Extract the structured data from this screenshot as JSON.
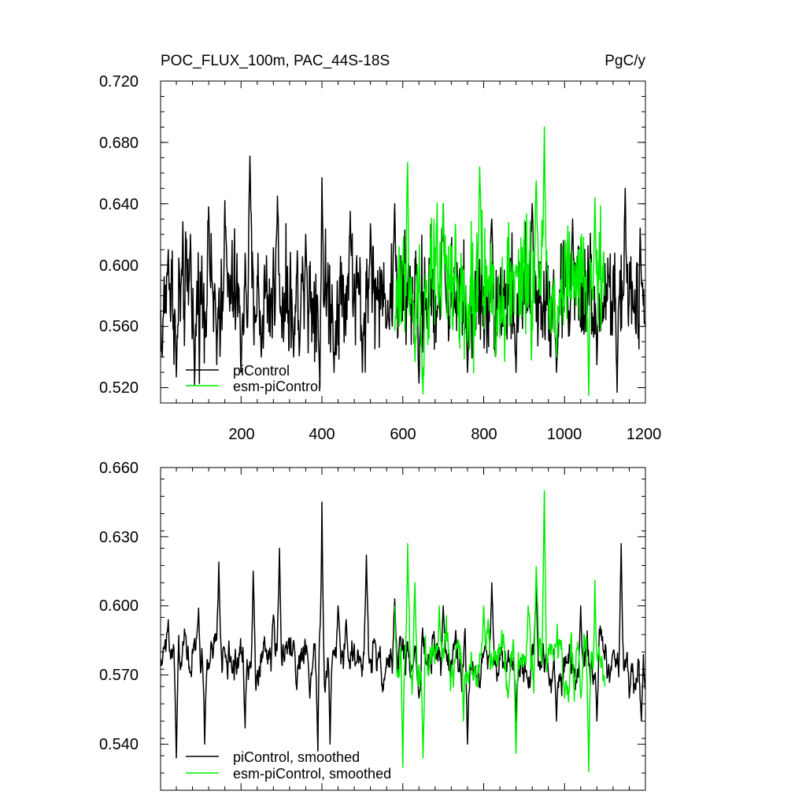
{
  "chart_data": [
    {
      "type": "line",
      "title": "POC_FLUX_100m, PAC_44S-18S",
      "units": "PgC/y",
      "xlim": [
        1,
        1200
      ],
      "ylim": [
        0.51,
        0.72
      ],
      "x_ticks": [
        200,
        400,
        600,
        800,
        1000,
        1200
      ],
      "y_ticks": [
        0.72,
        0.68,
        0.64,
        0.6,
        0.56,
        0.52
      ],
      "y_tick_labels": [
        "0.720",
        "0.680",
        "0.640",
        "0.600",
        "0.560",
        "0.520"
      ],
      "grid": false,
      "legend_position": "bottom-left",
      "series": [
        {
          "name": "piControl",
          "color": "#000000",
          "x_range": [
            1,
            1200
          ],
          "mean": 0.58,
          "std": 0.024,
          "keypoints": [
            [
              5,
              0.54
            ],
            [
              20,
              0.61
            ],
            [
              40,
              0.527
            ],
            [
              75,
              0.62
            ],
            [
              85,
              0.522
            ],
            [
              120,
              0.638
            ],
            [
              140,
              0.535
            ],
            [
              160,
              0.642
            ],
            [
              200,
              0.53
            ],
            [
              222,
              0.671
            ],
            [
              250,
              0.54
            ],
            [
              290,
              0.645
            ],
            [
              330,
              0.54
            ],
            [
              360,
              0.62
            ],
            [
              395,
              0.52
            ],
            [
              400,
              0.657
            ],
            [
              430,
              0.53
            ],
            [
              470,
              0.635
            ],
            [
              500,
              0.53
            ],
            [
              520,
              0.627
            ],
            [
              560,
              0.56
            ],
            [
              580,
              0.64
            ],
            [
              640,
              0.523
            ],
            [
              700,
              0.64
            ],
            [
              760,
              0.53
            ],
            [
              820,
              0.63
            ],
            [
              880,
              0.53
            ],
            [
              920,
              0.64
            ],
            [
              980,
              0.53
            ],
            [
              1020,
              0.63
            ],
            [
              1080,
              0.535
            ],
            [
              1130,
              0.517
            ],
            [
              1150,
              0.65
            ],
            [
              1170,
              0.57
            ],
            [
              1200,
              0.56
            ]
          ]
        },
        {
          "name": "esm-piControl",
          "color": "#00ee00",
          "x_range": [
            580,
            1100
          ],
          "mean": 0.585,
          "std": 0.027,
          "keypoints": [
            [
              580,
              0.557
            ],
            [
              612,
              0.667
            ],
            [
              630,
              0.537
            ],
            [
              650,
              0.516
            ],
            [
              700,
              0.64
            ],
            [
              760,
              0.55
            ],
            [
              790,
              0.664
            ],
            [
              830,
              0.54
            ],
            [
              880,
              0.6
            ],
            [
              930,
              0.655
            ],
            [
              950,
              0.69
            ],
            [
              980,
              0.54
            ],
            [
              1060,
              0.515
            ],
            [
              1075,
              0.644
            ],
            [
              1100,
              0.58
            ]
          ]
        }
      ]
    },
    {
      "type": "line",
      "title": "",
      "xlim": [
        1,
        1200
      ],
      "ylim": [
        0.52,
        0.66
      ],
      "x_ticks": [
        200,
        400,
        600,
        800,
        1000,
        1200
      ],
      "y_ticks": [
        0.66,
        0.63,
        0.6,
        0.57,
        0.54
      ],
      "y_tick_labels": [
        "0.660",
        "0.630",
        "0.600",
        "0.570",
        "0.540"
      ],
      "grid": false,
      "legend_position": "bottom-left",
      "series": [
        {
          "name": "piControl, smoothed",
          "color": "#000000",
          "x_range": [
            1,
            1200
          ],
          "mean": 0.577,
          "std": 0.016,
          "keypoints": [
            [
              5,
              0.575
            ],
            [
              20,
              0.594
            ],
            [
              40,
              0.534
            ],
            [
              60,
              0.59
            ],
            [
              95,
              0.599
            ],
            [
              110,
              0.54
            ],
            [
              145,
              0.619
            ],
            [
              160,
              0.58
            ],
            [
              210,
              0.547
            ],
            [
              230,
              0.615
            ],
            [
              280,
              0.596
            ],
            [
              295,
              0.625
            ],
            [
              330,
              0.585
            ],
            [
              370,
              0.56
            ],
            [
              390,
              0.537
            ],
            [
              400,
              0.645
            ],
            [
              420,
              0.54
            ],
            [
              440,
              0.6
            ],
            [
              460,
              0.594
            ],
            [
              510,
              0.622
            ],
            [
              530,
              0.585
            ],
            [
              580,
              0.603
            ],
            [
              640,
              0.56
            ],
            [
              700,
              0.6
            ],
            [
              760,
              0.54
            ],
            [
              820,
              0.61
            ],
            [
              880,
              0.55
            ],
            [
              930,
              0.61
            ],
            [
              980,
              0.55
            ],
            [
              1040,
              0.6
            ],
            [
              1080,
              0.55
            ],
            [
              1120,
              0.58
            ],
            [
              1140,
              0.627
            ],
            [
              1160,
              0.56
            ],
            [
              1190,
              0.55
            ],
            [
              1200,
              0.564
            ]
          ]
        },
        {
          "name": "esm-piControl, smoothed",
          "color": "#00ee00",
          "x_range": [
            580,
            1100
          ],
          "mean": 0.578,
          "std": 0.018,
          "keypoints": [
            [
              580,
              0.6
            ],
            [
              600,
              0.53
            ],
            [
              612,
              0.627
            ],
            [
              630,
              0.61
            ],
            [
              650,
              0.534
            ],
            [
              690,
              0.6
            ],
            [
              750,
              0.55
            ],
            [
              800,
              0.6
            ],
            [
              860,
              0.56
            ],
            [
              880,
              0.536
            ],
            [
              910,
              0.6
            ],
            [
              930,
              0.617
            ],
            [
              950,
              0.65
            ],
            [
              970,
              0.58
            ],
            [
              1000,
              0.56
            ],
            [
              1040,
              0.56
            ],
            [
              1060,
              0.528
            ],
            [
              1075,
              0.611
            ],
            [
              1100,
              0.565
            ]
          ]
        }
      ]
    }
  ]
}
